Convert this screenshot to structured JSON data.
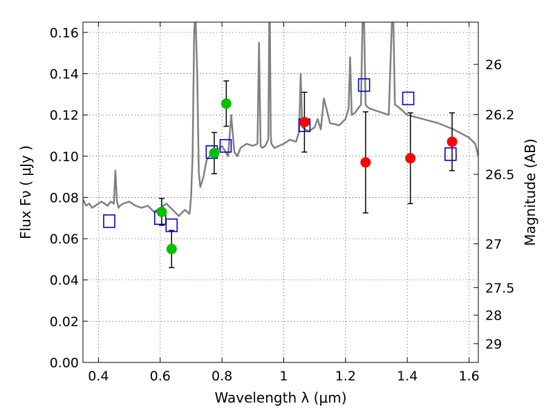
{
  "chart_data": {
    "type": "scatter",
    "xlabel": "Wavelength  λ (μm)",
    "ylabel": "Flux  Fν  ( μJy )",
    "y2label": "Magnitude (AB)",
    "xlim": [
      0.35,
      1.63
    ],
    "ylim": [
      0.0,
      0.165
    ],
    "grid": true,
    "x_ticks": [
      {
        "v": 0.4,
        "label": "0.4"
      },
      {
        "v": 0.6,
        "label": "0.6"
      },
      {
        "v": 0.8,
        "label": "0.8"
      },
      {
        "v": 1.0,
        "label": "1"
      },
      {
        "v": 1.2,
        "label": "1.2"
      },
      {
        "v": 1.4,
        "label": "1.4"
      },
      {
        "v": 1.6,
        "label": "1.6"
      }
    ],
    "y_ticks": [
      {
        "v": 0.0,
        "label": "0.00"
      },
      {
        "v": 0.02,
        "label": "0.02"
      },
      {
        "v": 0.04,
        "label": "0.04"
      },
      {
        "v": 0.06,
        "label": "0.06"
      },
      {
        "v": 0.08,
        "label": "0.08"
      },
      {
        "v": 0.1,
        "label": "0.10"
      },
      {
        "v": 0.12,
        "label": "0.12"
      },
      {
        "v": 0.14,
        "label": "0.14"
      },
      {
        "v": 0.16,
        "label": "0.16"
      }
    ],
    "y2_ticks": [
      {
        "flux": 0.1445,
        "label": "26"
      },
      {
        "flux": 0.1202,
        "label": "26.2"
      },
      {
        "flux": 0.0912,
        "label": "26.5"
      },
      {
        "flux": 0.0575,
        "label": "27"
      },
      {
        "flux": 0.0363,
        "label": "27.5"
      },
      {
        "flux": 0.0229,
        "label": "28"
      },
      {
        "flux": 0.0091,
        "label": "29"
      }
    ],
    "series": [
      {
        "kind": "model",
        "color": "#808080",
        "x": [
          0.35,
          0.36,
          0.37,
          0.38,
          0.39,
          0.4,
          0.41,
          0.42,
          0.43,
          0.44,
          0.45,
          0.455,
          0.46,
          0.465,
          0.47,
          0.48,
          0.5,
          0.52,
          0.54,
          0.56,
          0.58,
          0.6,
          0.62,
          0.64,
          0.66,
          0.68,
          0.695,
          0.7,
          0.705,
          0.71,
          0.712,
          0.715,
          0.72,
          0.725,
          0.73,
          0.74,
          0.75,
          0.76,
          0.78,
          0.8,
          0.82,
          0.83,
          0.84,
          0.85,
          0.86,
          0.88,
          0.9,
          0.915,
          0.92,
          0.925,
          0.93,
          0.94,
          0.95,
          0.953,
          0.955,
          0.958,
          0.96,
          0.97,
          1.0,
          1.02,
          1.04,
          1.05,
          1.055,
          1.06,
          1.08,
          1.1,
          1.11,
          1.12,
          1.13,
          1.15,
          1.18,
          1.2,
          1.21,
          1.215,
          1.22,
          1.23,
          1.25,
          1.255,
          1.26,
          1.265,
          1.27,
          1.28,
          1.3,
          1.32,
          1.34,
          1.35,
          1.355,
          1.36,
          1.37,
          1.4,
          1.45,
          1.5,
          1.55,
          1.6,
          1.62,
          1.63
        ],
        "y": [
          0.079,
          0.076,
          0.077,
          0.075,
          0.076,
          0.077,
          0.078,
          0.077,
          0.076,
          0.078,
          0.077,
          0.093,
          0.078,
          0.075,
          0.076,
          0.077,
          0.078,
          0.076,
          0.075,
          0.076,
          0.073,
          0.075,
          0.077,
          0.074,
          0.071,
          0.074,
          0.072,
          0.08,
          0.1,
          0.16,
          0.165,
          0.165,
          0.14,
          0.092,
          0.085,
          0.09,
          0.098,
          0.1,
          0.102,
          0.105,
          0.1,
          0.12,
          0.102,
          0.1,
          0.104,
          0.106,
          0.105,
          0.106,
          0.155,
          0.105,
          0.104,
          0.105,
          0.108,
          0.165,
          0.165,
          0.11,
          0.106,
          0.104,
          0.106,
          0.108,
          0.107,
          0.112,
          0.14,
          0.114,
          0.112,
          0.114,
          0.118,
          0.113,
          0.128,
          0.116,
          0.115,
          0.118,
          0.123,
          0.148,
          0.12,
          0.121,
          0.125,
          0.165,
          0.165,
          0.125,
          0.124,
          0.123,
          0.122,
          0.121,
          0.12,
          0.165,
          0.165,
          0.125,
          0.124,
          0.12,
          0.118,
          0.116,
          0.113,
          0.109,
          0.106,
          0.1
        ]
      },
      {
        "kind": "filter-points",
        "color": "#00c000",
        "x": [
          0.605,
          0.637,
          0.775,
          0.814
        ],
        "y": [
          0.073,
          0.055,
          0.1015,
          0.1255
        ],
        "err": [
          0.0065,
          0.009,
          0.01,
          0.011
        ]
      },
      {
        "kind": "filter-points",
        "color": "#ff0000",
        "x": [
          1.067,
          1.265,
          1.41,
          1.545
        ],
        "y": [
          0.1165,
          0.097,
          0.099,
          0.107
        ],
        "err": [
          0.0145,
          0.0245,
          0.022,
          0.014
        ]
      },
      {
        "kind": "model-photometry",
        "color": "#0000cc",
        "x": [
          0.435,
          0.6,
          0.637,
          0.767,
          0.812,
          1.067,
          1.26,
          1.403,
          1.54
        ],
        "y": [
          0.0685,
          0.07,
          0.0665,
          0.102,
          0.105,
          0.115,
          0.1345,
          0.128,
          0.101
        ]
      }
    ]
  }
}
